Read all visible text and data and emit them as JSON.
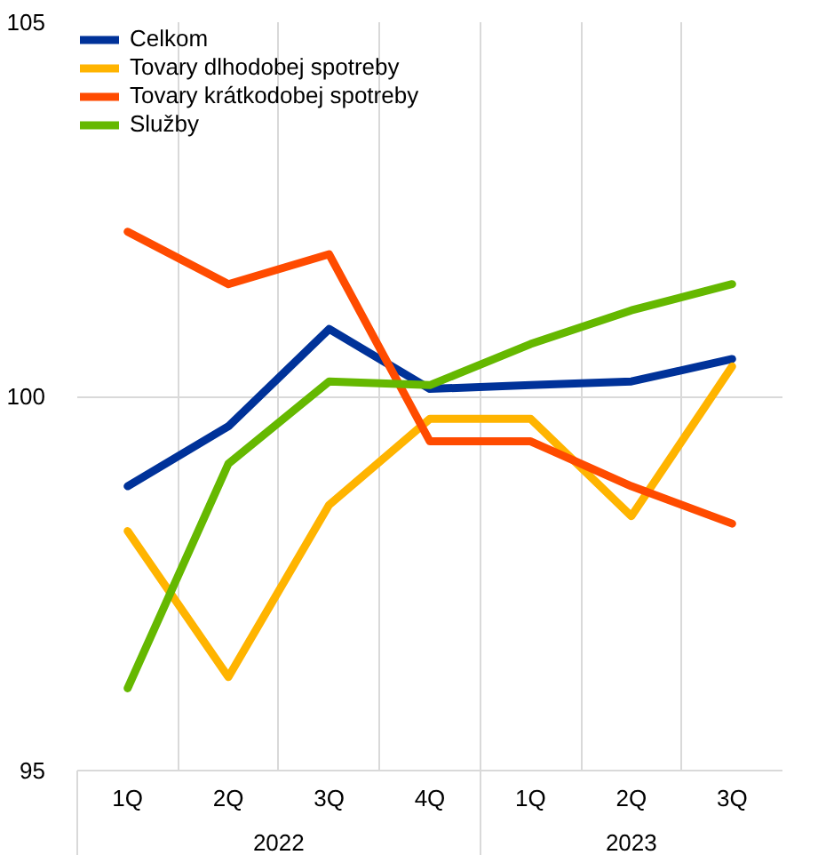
{
  "chart_data": {
    "type": "line",
    "categories": [
      "1Q",
      "2Q",
      "3Q",
      "4Q",
      "1Q",
      "2Q",
      "3Q"
    ],
    "series": [
      {
        "name": "Celkom",
        "color": "#003299",
        "values": [
          98.8,
          99.6,
          100.9,
          100.1,
          100.15,
          100.2,
          100.5
        ]
      },
      {
        "name": "Tovary dlhodobej spotreby",
        "color": "#ffb400",
        "values": [
          98.2,
          96.25,
          98.55,
          99.7,
          99.7,
          98.4,
          100.4
        ]
      },
      {
        "name": "Tovary krátkodobej spotreby",
        "color": "#ff4b00",
        "values": [
          102.2,
          101.5,
          101.9,
          99.4,
          99.4,
          98.8,
          98.3
        ]
      },
      {
        "name": "Služby",
        "color": "#65b800",
        "values": [
          96.1,
          99.1,
          100.2,
          100.15,
          100.7,
          101.15,
          101.5
        ]
      }
    ],
    "annotations": [
      "2022",
      "2023"
    ],
    "ylim": [
      95,
      105
    ],
    "yticks": [
      95,
      100,
      105
    ],
    "grid": true,
    "legend": "top left",
    "marker": "none",
    "line_style": "solid"
  }
}
